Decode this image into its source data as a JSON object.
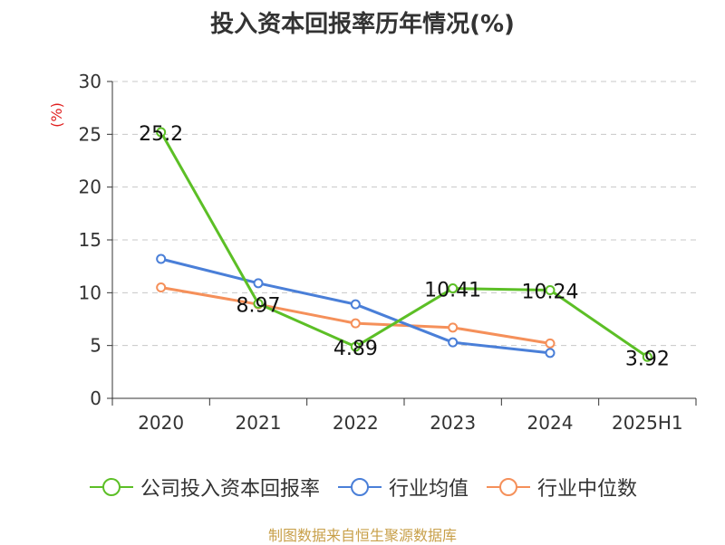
{
  "title": "投入资本回报率历年情况(%)",
  "source": "制图数据来自恒生聚源数据库",
  "chart_data": {
    "type": "line",
    "title": "投入资本回报率历年情况(%)",
    "ylabel": "(%)",
    "xlabel": "",
    "categories": [
      "2020",
      "2021",
      "2022",
      "2023",
      "2024",
      "2025H1"
    ],
    "ylim": [
      0,
      30
    ],
    "yticks": [
      0,
      5,
      10,
      15,
      20,
      25,
      30
    ],
    "grid": true,
    "legend_position": "bottom",
    "series": [
      {
        "name": "公司投入资本回报率",
        "color": "#5cbf26",
        "values": [
          25.2,
          8.97,
          4.89,
          10.41,
          10.24,
          3.92
        ],
        "labels": [
          "25.2",
          "8.97",
          "4.89",
          "10.41",
          "10.24",
          "3.92"
        ]
      },
      {
        "name": "行业均值",
        "color": "#4a7fd8",
        "values": [
          13.2,
          10.9,
          8.9,
          5.3,
          4.3,
          null
        ]
      },
      {
        "name": "行业中位数",
        "color": "#f5905a",
        "values": [
          10.5,
          8.9,
          7.1,
          6.7,
          5.2,
          null
        ]
      }
    ]
  }
}
